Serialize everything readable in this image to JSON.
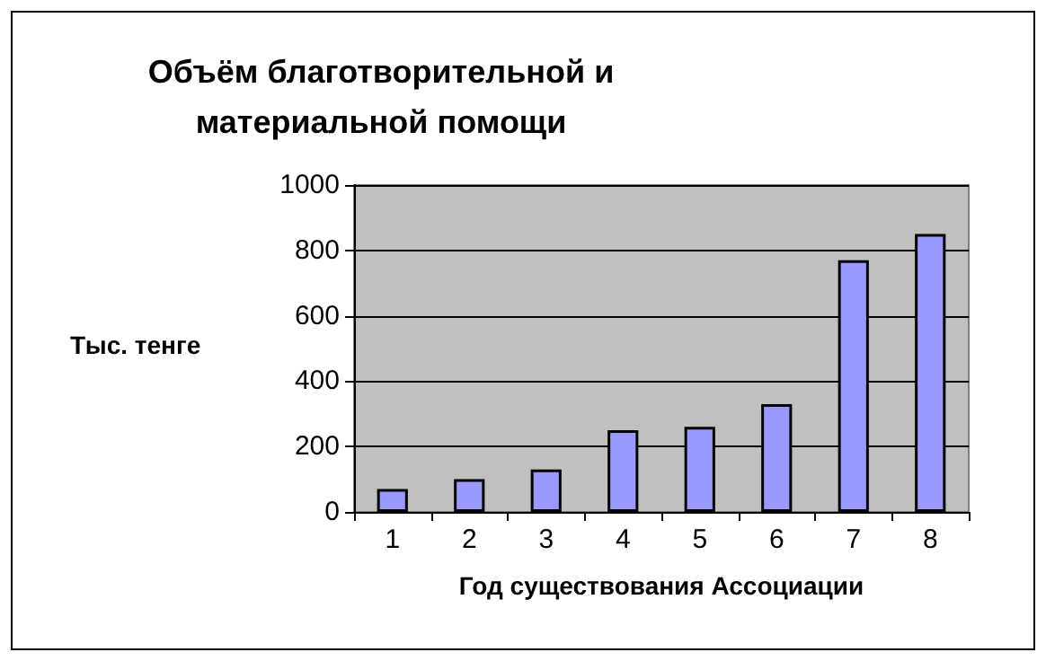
{
  "chart_data": {
    "type": "bar",
    "title": "Объём благотворительной и\nматериальной помощи",
    "xlabel": "Год существования Ассоциации",
    "ylabel": "Тыс. тенге",
    "categories": [
      "1",
      "2",
      "3",
      "4",
      "5",
      "6",
      "7",
      "8"
    ],
    "values": [
      70,
      100,
      130,
      250,
      260,
      330,
      770,
      850
    ],
    "color": "#9999ff",
    "ylim": [
      0,
      1000
    ],
    "yticks": [
      0,
      200,
      400,
      600,
      800,
      1000
    ],
    "grid": "y"
  }
}
